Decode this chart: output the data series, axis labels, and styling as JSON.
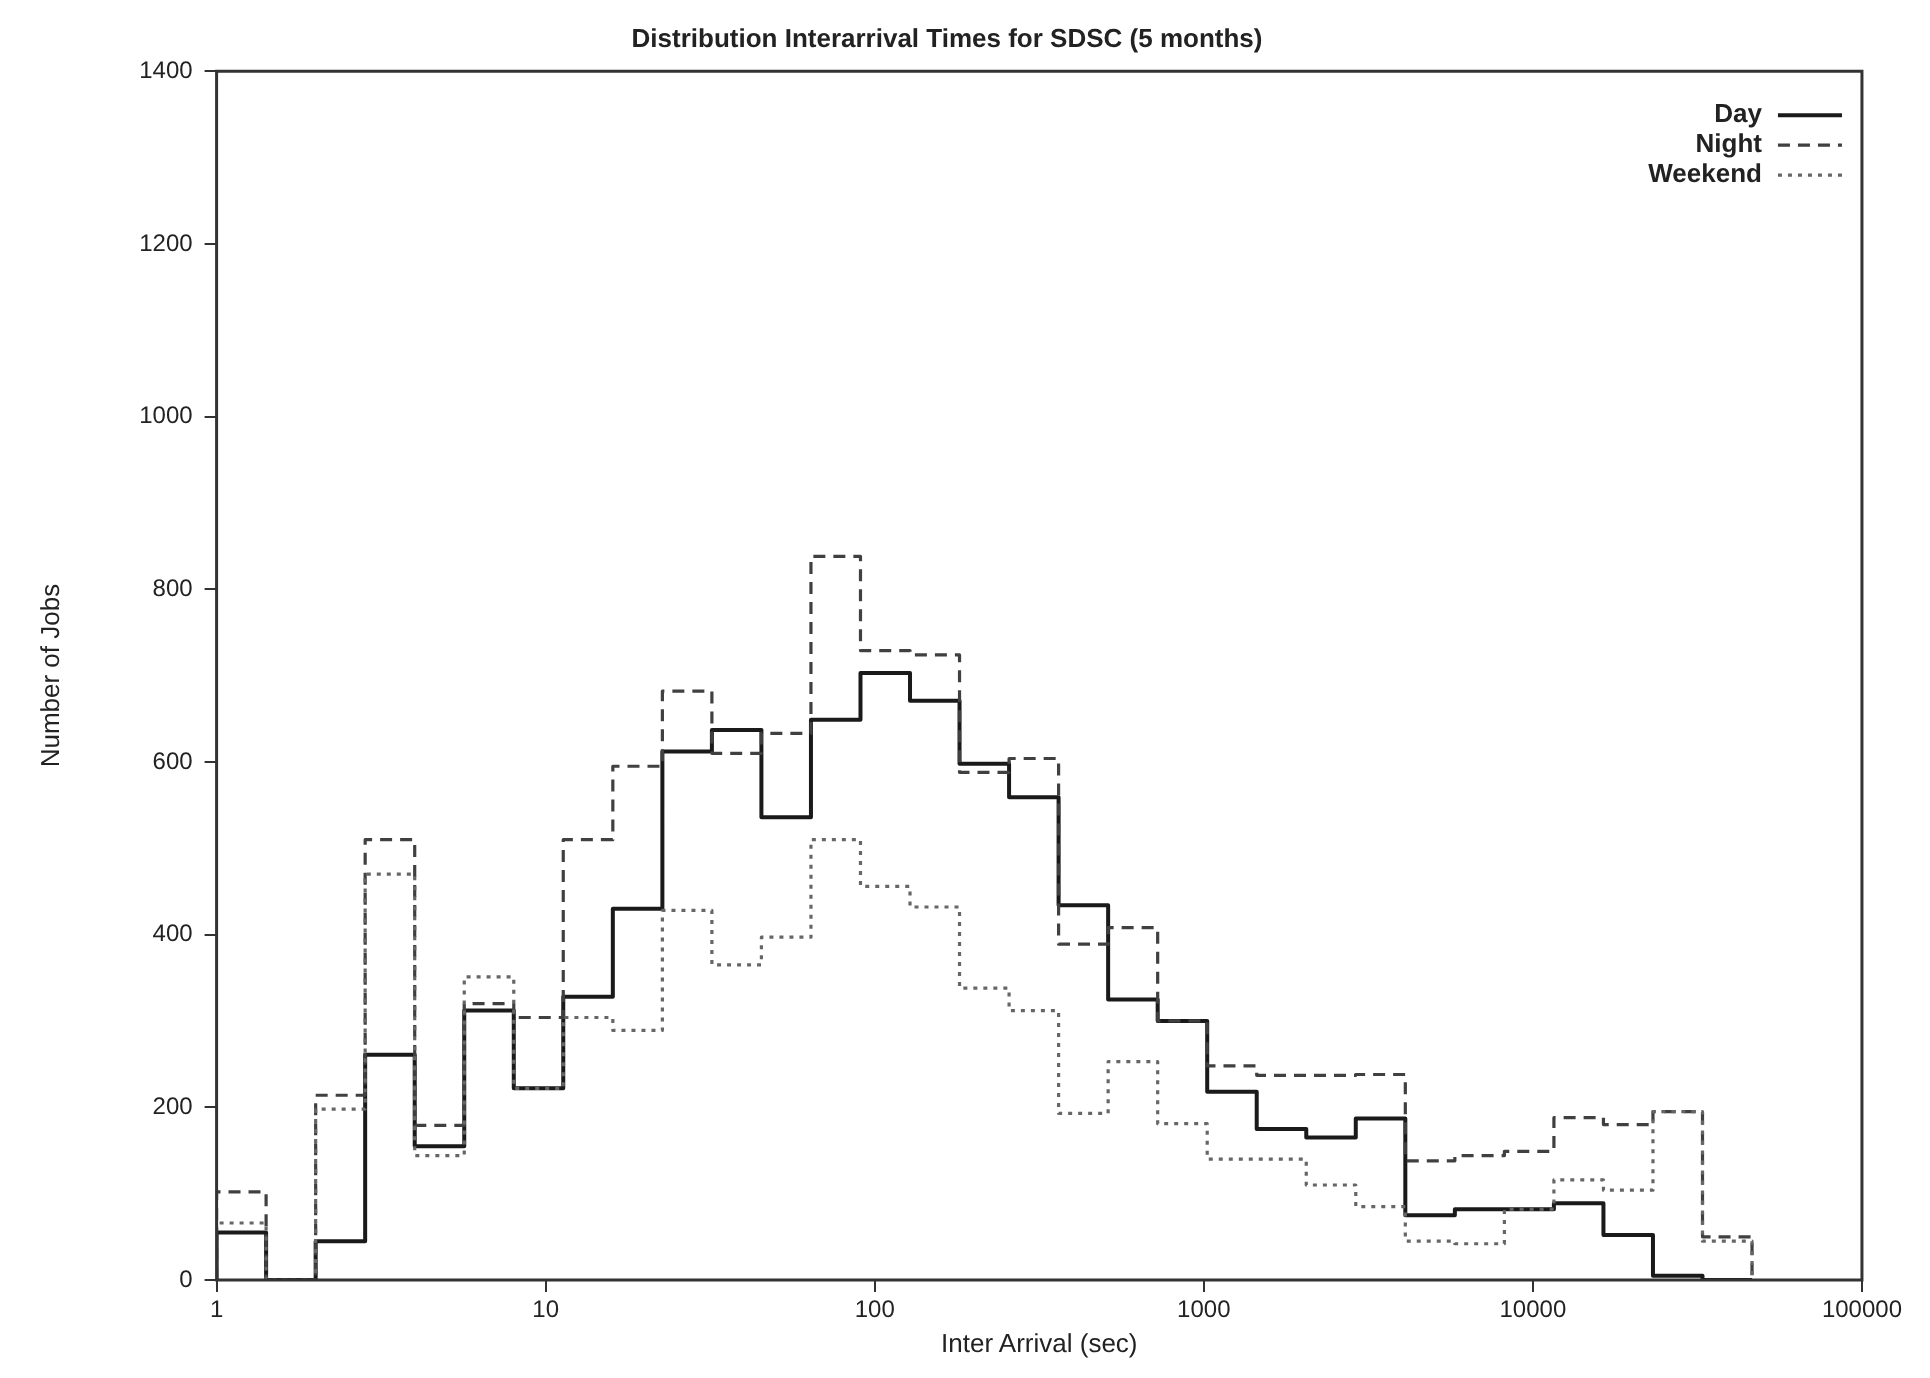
{
  "chart_data": {
    "type": "histogram",
    "title": "Distribution Interarrival Times for SDSC (5 months)",
    "xlabel": "Inter Arrival (sec)",
    "ylabel": "Number of Jobs",
    "bins": [
      1,
      1.414,
      2,
      2.828,
      4,
      5.657,
      8,
      11.31,
      16,
      22.63,
      32,
      45.25,
      64,
      90.51,
      128,
      181,
      256,
      362,
      512,
      724.1,
      1024,
      1448,
      2048,
      2896,
      4096,
      5793,
      8192,
      11585,
      16384,
      23170,
      32768,
      46341
    ],
    "series": [
      {
        "name": "Day",
        "color": "#1a1a1a",
        "line_style": "solid",
        "values": [
          55,
          0,
          45,
          261,
          155,
          312,
          222,
          328,
          430,
          612,
          637,
          536,
          649,
          703,
          671,
          598,
          559,
          434,
          325,
          300,
          218,
          175,
          165,
          187,
          75,
          82,
          82,
          89,
          52,
          5,
          0
        ]
      },
      {
        "name": "Night",
        "color": "#404040",
        "line_style": "dashed",
        "values": [
          102,
          0,
          214,
          510,
          179,
          320,
          304,
          510,
          595,
          682,
          610,
          633,
          838,
          729,
          724,
          588,
          604,
          389,
          408,
          300,
          248,
          237,
          237,
          238,
          138,
          144,
          149,
          188,
          180,
          195,
          50
        ]
      },
      {
        "name": "Weekend",
        "color": "#666666",
        "line_style": "dotted",
        "values": [
          66,
          0,
          198,
          470,
          144,
          351,
          222,
          304,
          289,
          428,
          365,
          397,
          510,
          456,
          432,
          338,
          312,
          193,
          253,
          181,
          140,
          140,
          110,
          85,
          45,
          42,
          82,
          116,
          104,
          195,
          45
        ]
      }
    ],
    "xlim": [
      1,
      100000
    ],
    "xticks": [
      1,
      10,
      100,
      1000,
      10000,
      100000
    ],
    "ylim": [
      0,
      1400
    ],
    "yticks": [
      0,
      200,
      400,
      600,
      800,
      1000,
      1200,
      1400
    ],
    "log": "x",
    "grid": false,
    "legend": "top right"
  }
}
